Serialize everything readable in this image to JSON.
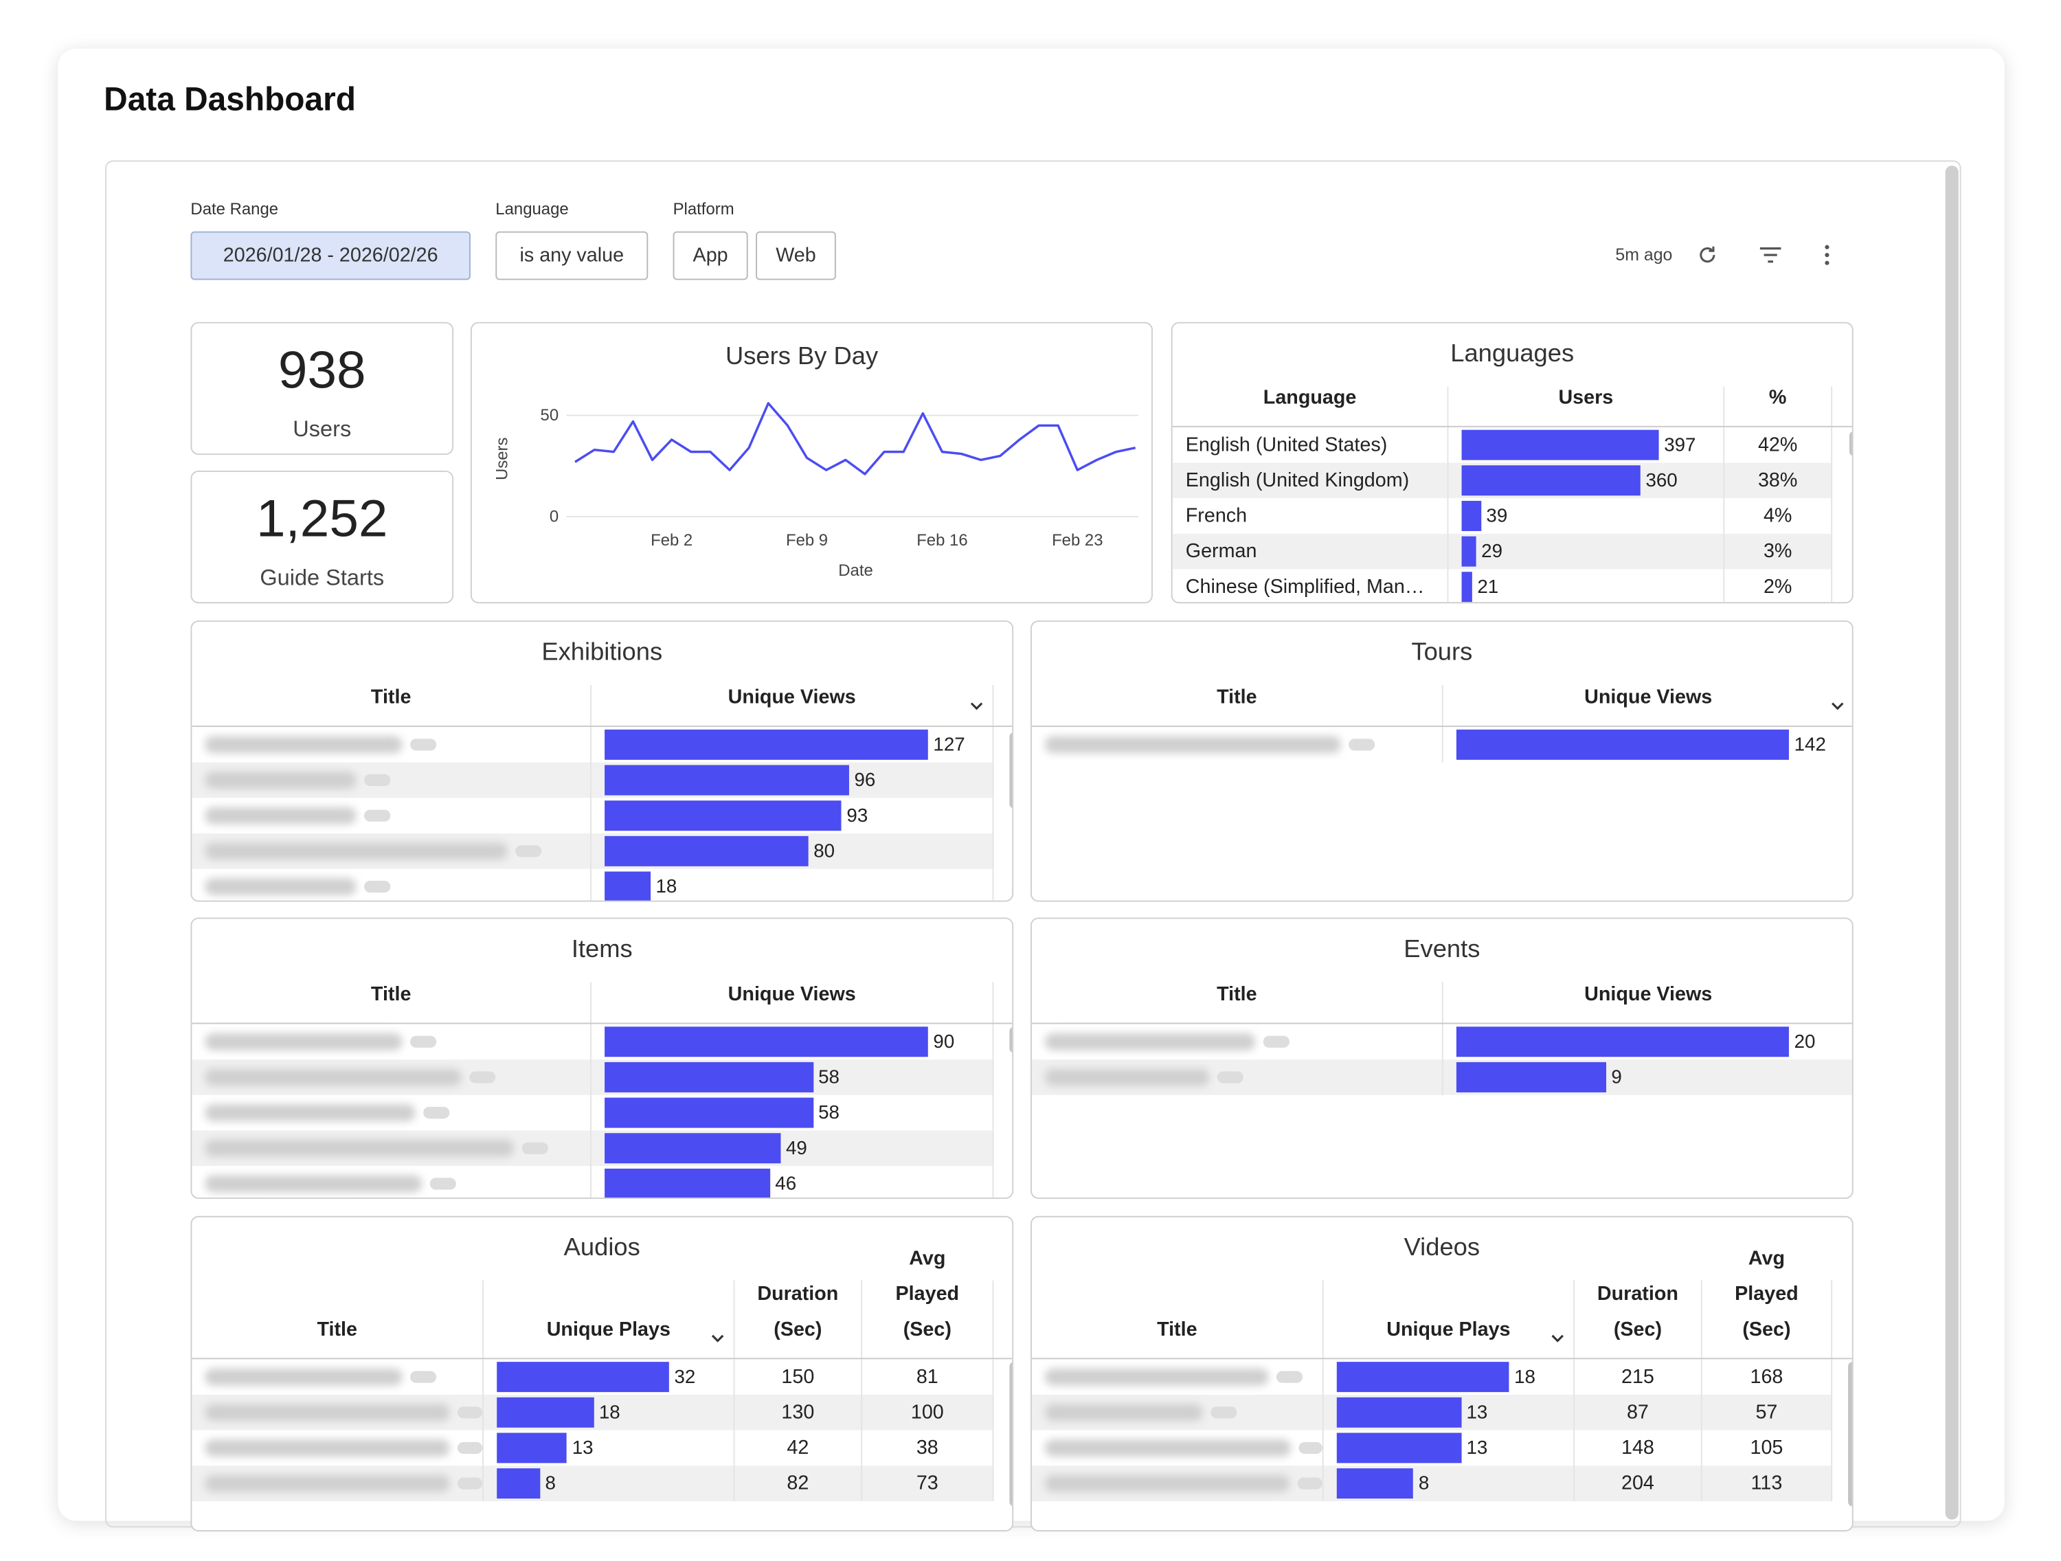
{
  "header": {
    "title": "Data Dashboard"
  },
  "filters": [
    {
      "label": "Date Range",
      "options": [
        "2026/01/28 - 2026/02/26"
      ]
    },
    {
      "label": "Language",
      "options": [
        "is any value"
      ]
    },
    {
      "label": "Platform",
      "options": [
        "App",
        "Web"
      ]
    }
  ],
  "toolbar": {
    "updated": "5m ago"
  },
  "kpis": [
    {
      "value": "938",
      "label": "Users"
    },
    {
      "value": "1,252",
      "label": "Guide Starts"
    }
  ],
  "chart_data": {
    "type": "line",
    "title": "Users By Day",
    "x_label": "Date",
    "y_label": "Users",
    "color": "#4b4cf2",
    "x": [
      "Jan 28",
      "Jan 29",
      "Jan 30",
      "Jan 31",
      "Feb 1",
      "Feb 2",
      "Feb 3",
      "Feb 4",
      "Feb 5",
      "Feb 6",
      "Feb 7",
      "Feb 8",
      "Feb 9",
      "Feb 10",
      "Feb 11",
      "Feb 12",
      "Feb 13",
      "Feb 14",
      "Feb 15",
      "Feb 16",
      "Feb 17",
      "Feb 18",
      "Feb 19",
      "Feb 20",
      "Feb 21",
      "Feb 22",
      "Feb 23",
      "Feb 24",
      "Feb 25",
      "Feb 26"
    ],
    "values": [
      27,
      33,
      32,
      47,
      28,
      38,
      32,
      32,
      23,
      34,
      56,
      45,
      29,
      23,
      28,
      21,
      32,
      32,
      51,
      32,
      31,
      28,
      30,
      38,
      45,
      45,
      23,
      28,
      32,
      34
    ],
    "xticks": [
      "Feb 2",
      "Feb 9",
      "Feb 16",
      "Feb 23"
    ],
    "ylim": [
      0,
      60
    ],
    "yticks": [
      0,
      50
    ],
    "grid": true
  },
  "tables": [
    {
      "title": "Languages",
      "columns": [
        "Language",
        "Users",
        "%"
      ],
      "color": "#4b4cf2",
      "labels": [
        "English (United States)",
        "English (United Kingdom)",
        "French",
        "German",
        "Chinese (Simplified, Man…"
      ],
      "values": [
        397,
        360,
        39,
        29,
        21
      ],
      "extra": [
        [
          "42%"
        ],
        [
          "38%"
        ],
        [
          "4%"
        ],
        [
          "3%"
        ],
        [
          "2%"
        ]
      ]
    },
    {
      "title": "Exhibitions",
      "columns": [
        "Title",
        "Unique Views"
      ],
      "color": "#4b4cf2",
      "values": [
        127,
        96,
        93,
        80,
        18
      ]
    },
    {
      "title": "Tours",
      "columns": [
        "Title",
        "Unique Views"
      ],
      "color": "#4b4cf2",
      "values": [
        142
      ]
    },
    {
      "title": "Items",
      "columns": [
        "Title",
        "Unique Views"
      ],
      "color": "#4b4cf2",
      "values": [
        90,
        58,
        58,
        49,
        46
      ]
    },
    {
      "title": "Events",
      "columns": [
        "Title",
        "Unique Views"
      ],
      "color": "#4b4cf2",
      "values": [
        20,
        9
      ]
    },
    {
      "title": "Audios",
      "columns": [
        "Title",
        "Unique Plays",
        "Duration (Sec)",
        "Avg Played (Sec)"
      ],
      "color": "#4b4cf2",
      "values": [
        32,
        18,
        13,
        8
      ],
      "extra": [
        [
          150,
          81
        ],
        [
          130,
          100
        ],
        [
          42,
          38
        ],
        [
          82,
          73
        ]
      ]
    },
    {
      "title": "Videos",
      "columns": [
        "Title",
        "Unique Plays",
        "Duration (Sec)",
        "Avg Played (Sec)"
      ],
      "color": "#4b4cf2",
      "values": [
        18,
        13,
        13,
        8
      ],
      "extra": [
        [
          215,
          168
        ],
        [
          87,
          57
        ],
        [
          148,
          105
        ],
        [
          204,
          113
        ]
      ]
    }
  ]
}
